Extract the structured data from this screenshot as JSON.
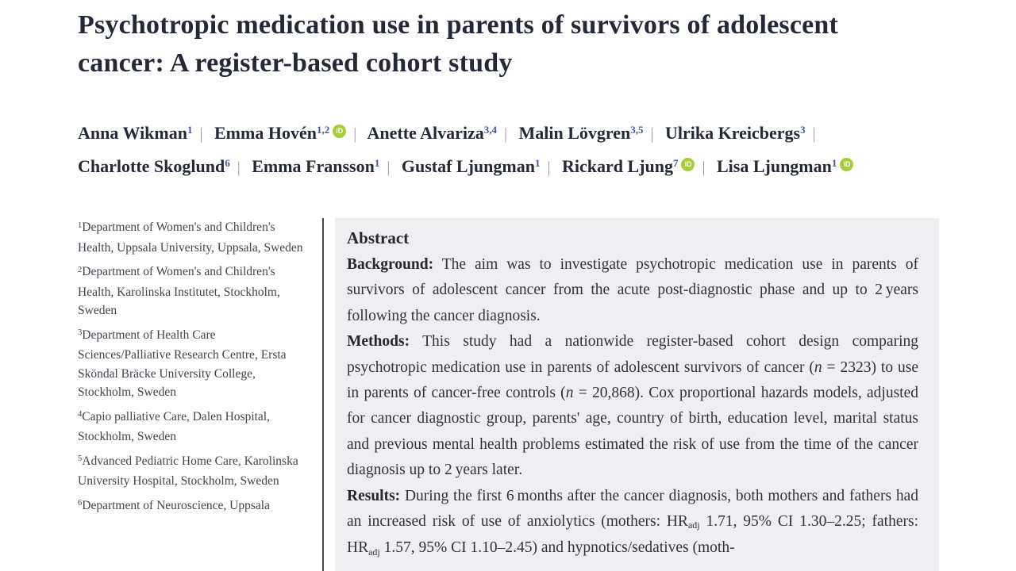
{
  "paper": {
    "title": "Psychotropic medication use in parents of survivors of adolescent cancer: A register-based cohort study"
  },
  "authors": {
    "separator": "|",
    "orcid_icon": "iD",
    "list": [
      {
        "name": "Anna Wikman",
        "sup": "1"
      },
      {
        "name": "Emma Hovén",
        "sup": "1,2"
      },
      {
        "name": "Anette Alvariza",
        "sup": "3,4"
      },
      {
        "name": "Malin Lövgren",
        "sup": "3,5"
      },
      {
        "name": "Ulrika Kreicbergs",
        "sup": "3"
      },
      {
        "name": "Charlotte Skoglund",
        "sup": "6"
      },
      {
        "name": "Emma Fransson",
        "sup": "1"
      },
      {
        "name": "Gustaf Ljungman",
        "sup": "1"
      },
      {
        "name": "Rickard Ljung",
        "sup": "7"
      },
      {
        "name": "Lisa Ljungman",
        "sup": "1"
      }
    ]
  },
  "affiliations": [
    {
      "sup": "1",
      "text": "Department of Women's and Children's Health, Uppsala University, Uppsala, Sweden"
    },
    {
      "sup": "2",
      "text": "Department of Women's and Children's Health, Karolinska Institutet, Stockholm, Sweden"
    },
    {
      "sup": "3",
      "text": "Department of Health Care Sciences/Palliative Research Centre, Ersta Sköndal Bräcke University College, Stockholm, Sweden"
    },
    {
      "sup": "4",
      "text": "Capio palliative Care, Dalen Hospital, Stockholm, Sweden"
    },
    {
      "sup": "5",
      "text": "Advanced Pediatric Home Care, Karolinska University Hospital, Stockholm, Sweden"
    },
    {
      "sup": "6",
      "text": "Department of Neuroscience, Uppsala"
    }
  ],
  "abstract": {
    "heading": "Abstract",
    "sections": [
      {
        "label": "Background:",
        "segments": [
          {
            "t": " The aim was to investigate psychotropic medication use in parents of survivors of adolescent cancer from the acute post-diagnostic phase and up to 2 years following the cancer diagnosis."
          }
        ]
      },
      {
        "label": "Methods:",
        "segments": [
          {
            "t": " This study had a nationwide register-based cohort design comparing psychotropic medication use in parents of adolescent survivors of cancer ("
          },
          {
            "t": "n"
          },
          {
            "t": " = 2323) to use in parents of cancer-free controls ("
          },
          {
            "t": "n"
          },
          {
            "t": " = 20,868). Cox proportional hazards models, adjusted for cancer diagnostic group, parents' age, country of birth, education level, marital status and previous mental health problems estimated the risk of use from the time of the cancer diagnosis up to 2 years later."
          }
        ]
      },
      {
        "label": "Results:",
        "segments": [
          {
            "t": " During the first 6 months after the cancer diagnosis, both mothers and fathers had an increased risk of use of anxiolytics (mothers: HR"
          },
          {
            "t": "adj"
          },
          {
            "t": " 1.71, 95% CI 1.30–2.25; fathers: HR"
          },
          {
            "t": "adj"
          },
          {
            "t": " 1.57, 95% CI 1.10–2.45) and hypnotics/sedatives (moth-"
          }
        ]
      }
    ]
  },
  "colors": {
    "title_text": "#222a39",
    "superscript_blue": "#3a57a7",
    "orcid_green": "#a6ce39",
    "abstract_background": "#efeff1",
    "divider": "#4a4a55"
  }
}
